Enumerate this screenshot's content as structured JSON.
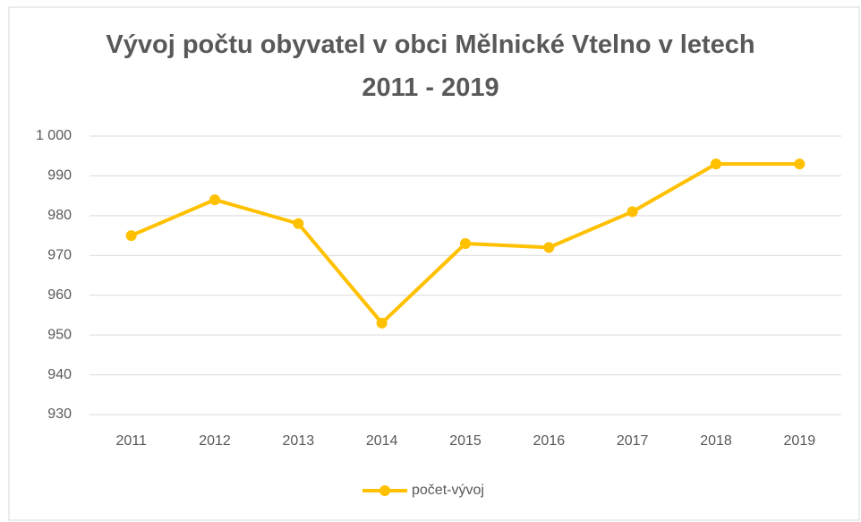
{
  "chart_data": {
    "type": "line",
    "title": "Vývoj počtu obyvatel v obci Mělnické Vtelno v letech 2011 - 2019",
    "categories": [
      "2011",
      "2012",
      "2013",
      "2014",
      "2015",
      "2016",
      "2017",
      "2018",
      "2019"
    ],
    "series": [
      {
        "name": "počet-vývoj",
        "color": "#ffc000",
        "values": [
          975,
          984,
          978,
          953,
          973,
          972,
          981,
          993,
          993
        ]
      }
    ],
    "ylim": [
      930,
      1000
    ],
    "yticks": [
      930,
      940,
      950,
      960,
      970,
      980,
      990,
      {
        "value": 1000,
        "label": "1 000"
      }
    ],
    "grid": true,
    "legend": "bottom"
  }
}
